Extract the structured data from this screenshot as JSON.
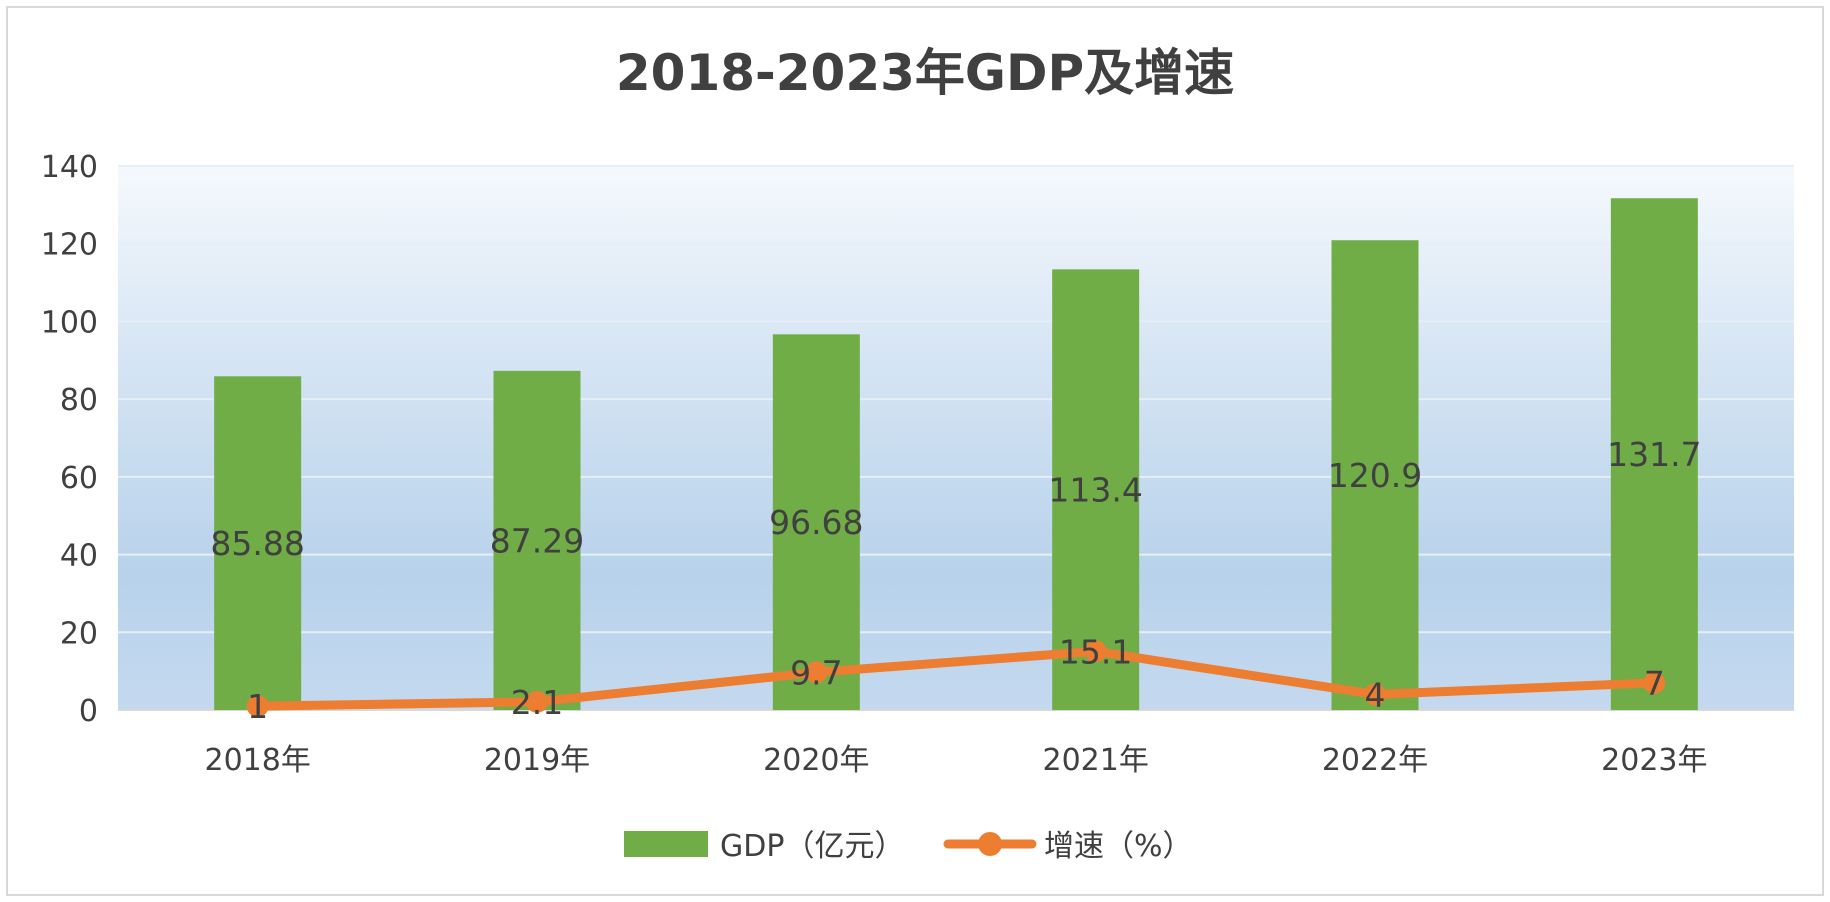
{
  "chart_data": {
    "type": "bar",
    "title": "2018-2023年GDP及增速",
    "categories": [
      "2018年",
      "2019年",
      "2020年",
      "2021年",
      "2022年",
      "2023年"
    ],
    "series": [
      {
        "name": "GDP（亿元）",
        "kind": "bar",
        "color": "#70ad47",
        "values": [
          85.88,
          87.29,
          96.68,
          113.4,
          120.9,
          131.7
        ],
        "labels": [
          "85.88",
          "87.29",
          "96.68",
          "113.4",
          "120.9",
          "131.7"
        ]
      },
      {
        "name": "增速（%）",
        "kind": "line",
        "color": "#ed7d31",
        "values": [
          1,
          2.1,
          9.7,
          15.1,
          4,
          7
        ],
        "labels": [
          "1",
          "2.1",
          "9.7",
          "15.1",
          "4",
          "7"
        ]
      }
    ],
    "ylim": [
      0,
      140
    ],
    "yticks": [
      "0",
      "20",
      "40",
      "60",
      "80",
      "100",
      "120",
      "140"
    ],
    "grid": true,
    "legend_position": "bottom",
    "plot_background": "gradient: white at top to light blue (#b4cfe9) toward bottom"
  }
}
